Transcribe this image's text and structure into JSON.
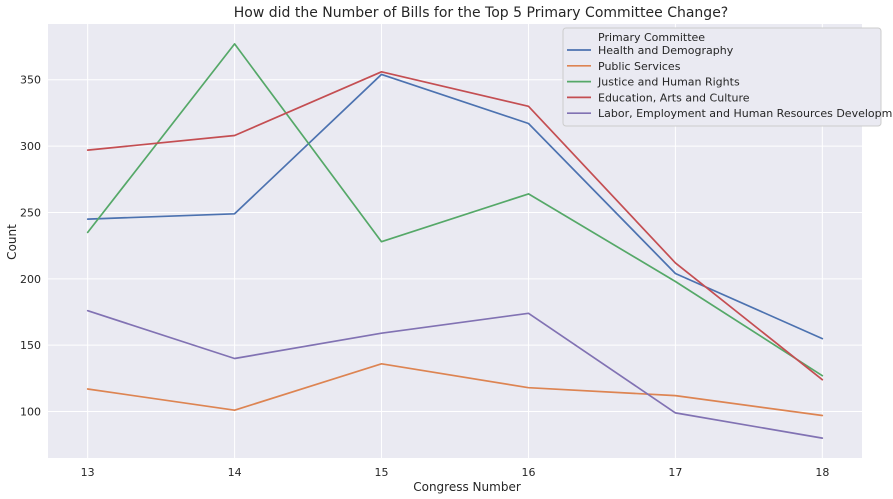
{
  "chart_data": {
    "type": "line",
    "title": "How did the Number of Bills for the Top 5 Primary Committee Change?",
    "xlabel": "Congress Number",
    "ylabel": "Count",
    "x": [
      13,
      14,
      15,
      16,
      17,
      18
    ],
    "xlim": [
      12.73,
      18.27
    ],
    "ylim": [
      65,
      392
    ],
    "yticks": [
      100,
      150,
      200,
      250,
      300,
      350
    ],
    "grid": true,
    "legend": {
      "title": "Primary Committee",
      "placement": "top-right"
    },
    "series": [
      {
        "name": "Health and Demography",
        "color": "#4c72b0",
        "values": [
          245,
          249,
          354,
          317,
          204,
          155
        ]
      },
      {
        "name": "Public Services",
        "color": "#dd8452",
        "values": [
          117,
          101,
          136,
          118,
          112,
          97
        ]
      },
      {
        "name": "Justice and Human Rights",
        "color": "#55a868",
        "values": [
          235,
          377,
          228,
          264,
          198,
          127
        ]
      },
      {
        "name": "Education, Arts and Culture",
        "color": "#c44e52",
        "values": [
          297,
          308,
          356,
          330,
          212,
          124
        ]
      },
      {
        "name": "Labor, Employment and Human Resources Development",
        "color": "#8172b3",
        "values": [
          176,
          140,
          159,
          174,
          99,
          80
        ]
      }
    ]
  },
  "colors": {
    "plot_background": "#eaeaf2",
    "grid": "#ffffff",
    "legend_background": "#eaeaf2",
    "legend_border": "#cccccc"
  }
}
